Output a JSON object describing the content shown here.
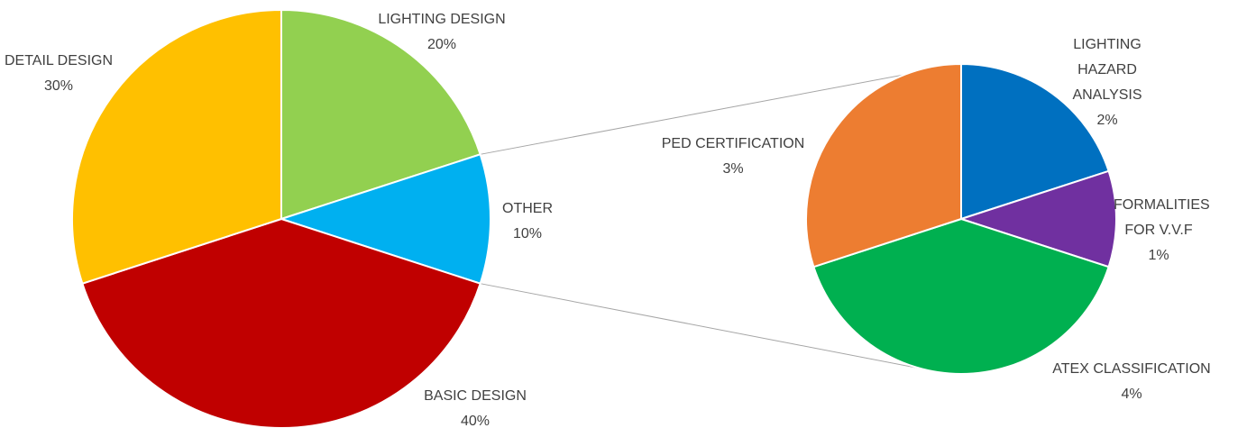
{
  "chart_data": [
    {
      "type": "pie",
      "categories": [
        "LIGHTING DESIGN",
        "OTHER",
        "BASIC DESIGN",
        "DETAIL DESIGN"
      ],
      "values": [
        20,
        10,
        40,
        30
      ],
      "value_labels": [
        "20%",
        "10%",
        "40%",
        "30%"
      ],
      "colors": [
        "#92d050",
        "#00b0f0",
        "#c00000",
        "#ffc000"
      ]
    },
    {
      "type": "pie",
      "categories": [
        "LIGHTING HAZARD ANALYSIS",
        "FORMALITIES FOR V.V.F",
        "ATEX CLASSIFICATION",
        "PED CERTIFICATION"
      ],
      "values": [
        2,
        1,
        4,
        3
      ],
      "value_labels": [
        "2%",
        "1%",
        "4%",
        "3%"
      ],
      "colors": [
        "#0070c0",
        "#7030a0",
        "#00b050",
        "#ed7d31"
      ]
    }
  ]
}
